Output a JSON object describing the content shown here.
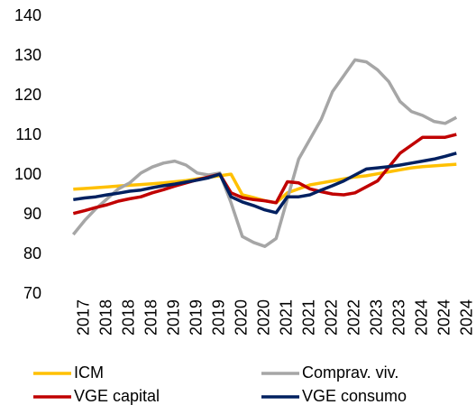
{
  "chart_data": {
    "type": "line",
    "categories": [
      null,
      "2017",
      null,
      "2018",
      null,
      "2018",
      null,
      "2018",
      null,
      "2019",
      null,
      "2019",
      null,
      "2019",
      null,
      "2020",
      null,
      "2020",
      null,
      "2021",
      null,
      "2021",
      null,
      "2022",
      null,
      "2022",
      null,
      "2023",
      null,
      "2023",
      null,
      "2024",
      null,
      "2024",
      null,
      "2024"
    ],
    "series": [
      {
        "name": "ICM",
        "color": "#FFC000",
        "values": [
          96.4,
          96.6,
          96.8,
          97,
          97.2,
          97.4,
          97.6,
          97.8,
          98,
          98.3,
          98.6,
          99,
          99.4,
          99.8,
          100.2,
          95,
          94.3,
          93.5,
          93,
          95.5,
          96.5,
          97.5,
          98,
          98.5,
          99,
          99.5,
          99.8,
          100.3,
          100.8,
          101.3,
          101.8,
          102.1,
          102.3,
          102.5,
          102.7,
          null
        ]
      },
      {
        "name": "Comprav. viv.",
        "color": "#A6A6A6",
        "values": [
          85,
          88.5,
          91.5,
          94,
          96.5,
          98,
          100.5,
          102,
          103,
          103.5,
          102.5,
          100.5,
          100,
          100.5,
          93,
          84.5,
          83,
          82,
          84,
          94,
          104,
          109,
          114,
          121,
          125,
          129,
          128.5,
          126.5,
          123.5,
          118.5,
          116,
          115,
          113.5,
          113,
          114.5,
          null
        ]
      },
      {
        "name": "VGE capital",
        "color": "#C00000",
        "values": [
          90.3,
          91,
          91.8,
          92.5,
          93.4,
          94,
          94.5,
          95.5,
          96.3,
          97.2,
          98,
          98.8,
          99.5,
          100.2,
          95.5,
          94.3,
          93.8,
          93.5,
          93,
          98.3,
          98,
          96.5,
          95.8,
          95.2,
          95,
          95.5,
          97,
          98.5,
          102,
          105.5,
          107.5,
          109.5,
          109.5,
          109.5,
          110.2,
          null
        ]
      },
      {
        "name": "VGE consumo",
        "color": "#002060",
        "values": [
          93.8,
          94.2,
          94.5,
          95,
          95.4,
          95.9,
          96.2,
          96.8,
          97.3,
          97.7,
          98.2,
          98.7,
          99.3,
          100.2,
          94.5,
          93.2,
          92.3,
          91.2,
          90.5,
          94.5,
          94.5,
          95,
          96.2,
          97.3,
          98.5,
          100,
          101.5,
          101.8,
          102.1,
          102.5,
          103,
          103.5,
          104,
          104.7,
          105.5,
          null
        ]
      }
    ],
    "ylim": [
      70,
      140
    ],
    "yticks": [
      70,
      80,
      90,
      100,
      110,
      120,
      130,
      140
    ],
    "grid": false,
    "legend": "bottom"
  }
}
